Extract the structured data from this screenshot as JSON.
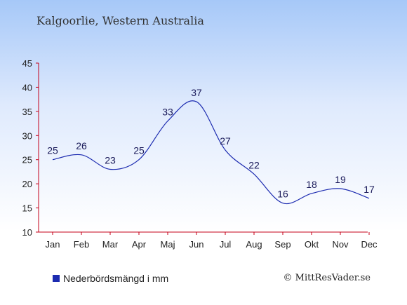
{
  "title": "Kalgoorlie, Western Australia",
  "legend_label": "Nederbördsmängd i mm",
  "credit": "© MittResVader.se",
  "colors": {
    "line": "#1c2bb0",
    "legend": "#1c2bb0"
  },
  "chart_data": {
    "type": "line",
    "categories": [
      "Jan",
      "Feb",
      "Mar",
      "Apr",
      "Maj",
      "Jun",
      "Jul",
      "Aug",
      "Sep",
      "Okt",
      "Nov",
      "Dec"
    ],
    "values": [
      25,
      26,
      23,
      25,
      33,
      37,
      27,
      22,
      16,
      18,
      19,
      17
    ],
    "yticks": [
      10,
      15,
      20,
      25,
      30,
      35,
      40,
      45
    ],
    "ylim": [
      10,
      45
    ],
    "title": "Kalgoorlie, Western Australia",
    "xlabel": "",
    "ylabel": "",
    "legend": "Nederbördsmängd i mm",
    "legend_position": "bottom-left",
    "grid": false
  }
}
